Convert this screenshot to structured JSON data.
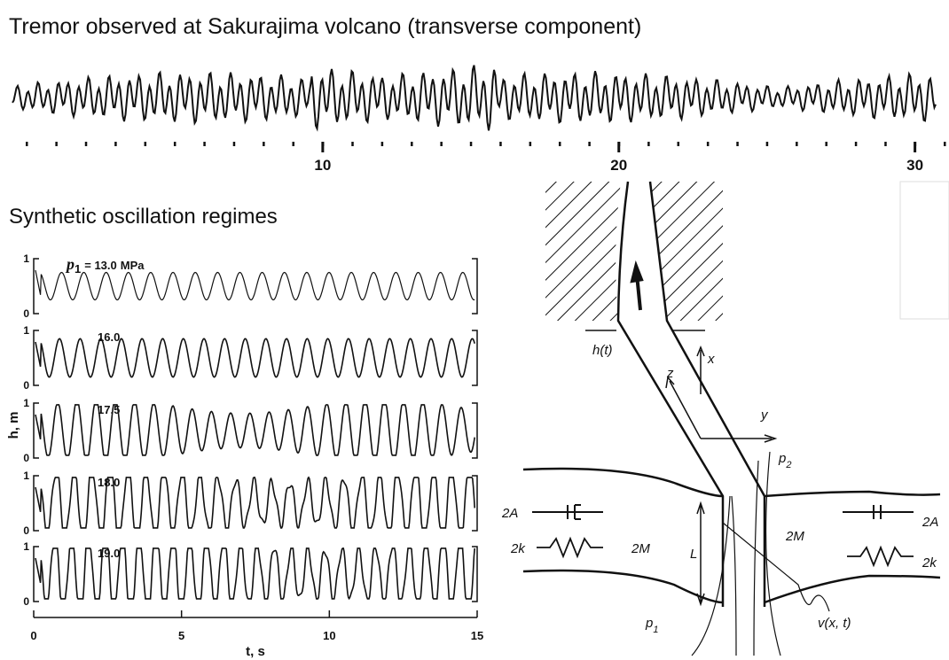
{
  "top_title": "Tremor observed at Sakurajima volcano (transverse component)",
  "seismogram": {
    "xlim": [
      0,
      31
    ],
    "xticks": [
      10,
      20,
      30
    ]
  },
  "bottom_title": "Synthetic oscillation regimes",
  "synthetic": {
    "ylabel": "h, m",
    "xlabel": "t, s",
    "xlim": [
      0,
      15
    ],
    "xticks": [
      0,
      5,
      10,
      15
    ],
    "ylim": [
      0,
      1
    ],
    "yticks": [
      0,
      1
    ],
    "param_symbol": "p",
    "param_subscript": "1",
    "param_unit": "MPa",
    "panels": [
      "= 13.0",
      "16.0",
      "17.5",
      "18.0",
      "19.0"
    ]
  },
  "diagram": {
    "h": "h(t)",
    "x": "x",
    "z": "z",
    "y": "y",
    "p2": "p",
    "p2_sub": "2",
    "p1": "p",
    "p1_sub": "1",
    "A_left": "2A",
    "k_left": "2k",
    "M_left": "2M",
    "L": "L",
    "M_right": "2M",
    "A_right": "2A",
    "k_right": "2k",
    "v": "v(x, t)"
  }
}
